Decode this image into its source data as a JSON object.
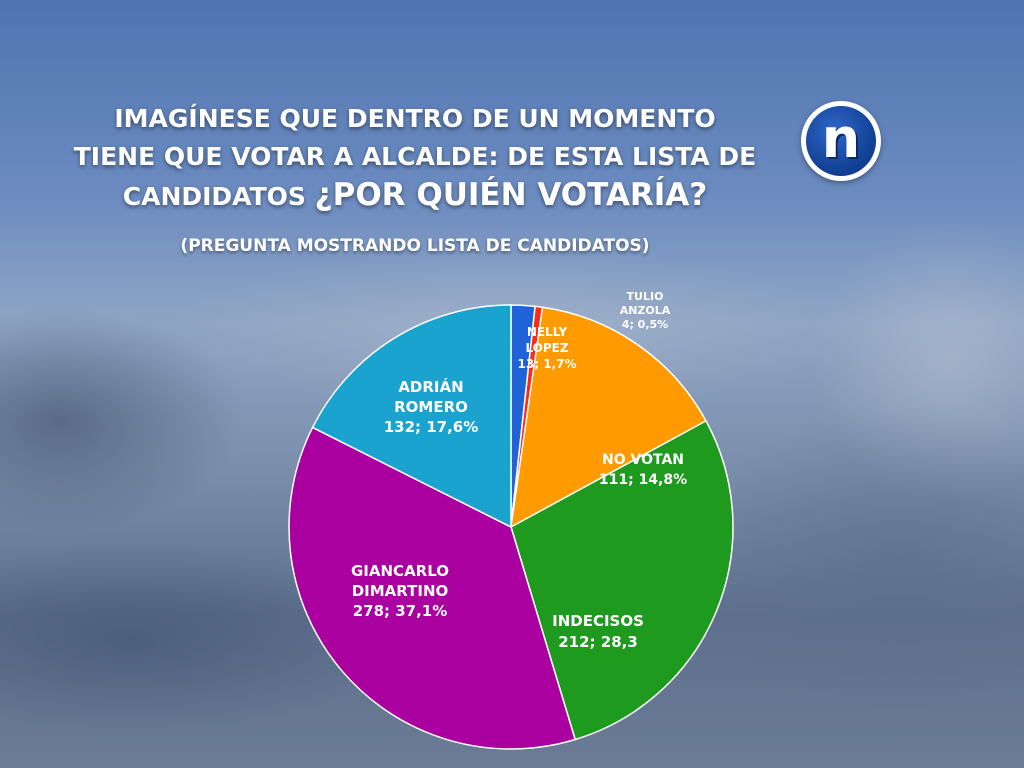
{
  "title": {
    "line1": "IMAGÍNESE QUE DENTRO DE UN MOMENTO",
    "line2": "TIENE QUE VOTAR A ALCALDE: DE ESTA LISTA DE",
    "line3a": "CANDIDATOS",
    "line3b": "¿POR QUIÉN VOTARÍA?"
  },
  "subtitle": "(PREGUNTA MOSTRANDO LISTA DE CANDIDATOS)",
  "logo": {
    "letter": "n"
  },
  "chart_data": {
    "type": "pie",
    "title": "",
    "slices": [
      {
        "name": "NELLY LÓPEZ",
        "value": 13,
        "percent_label": "1,7%",
        "color": "#1f63d6",
        "label_lines": [
          "NELLY",
          "LÓPEZ",
          "13; 1,7%"
        ]
      },
      {
        "name": "TULIO ANZOLA",
        "value": 4,
        "percent_label": "0,5%",
        "color": "#ff2a12",
        "label_lines": [
          "TULIO",
          "ANZOLA",
          "4; 0,5%"
        ]
      },
      {
        "name": "NO VOTAN",
        "value": 111,
        "percent_label": "14,8%",
        "color": "#ff9b00",
        "label_lines": [
          "NO VOTAN",
          "111; 14,8%"
        ]
      },
      {
        "name": "INDECISOS",
        "value": 212,
        "percent_label": "28,3",
        "color": "#1e9a1e",
        "label_lines": [
          "INDECISOS",
          "212; 28,3"
        ]
      },
      {
        "name": "GIANCARLO DIMARTINO",
        "value": 278,
        "percent_label": "37,1%",
        "color": "#aa00a0",
        "label_lines": [
          "GIANCARLO",
          "DIMARTINO",
          "278; 37,1%"
        ]
      },
      {
        "name": "ADRIÁN ROMERO",
        "value": 132,
        "percent_label": "17,6%",
        "color": "#1aa3cf",
        "label_lines": [
          "ADRIÁN",
          "ROMERO",
          "132; 17,6%"
        ]
      }
    ]
  }
}
